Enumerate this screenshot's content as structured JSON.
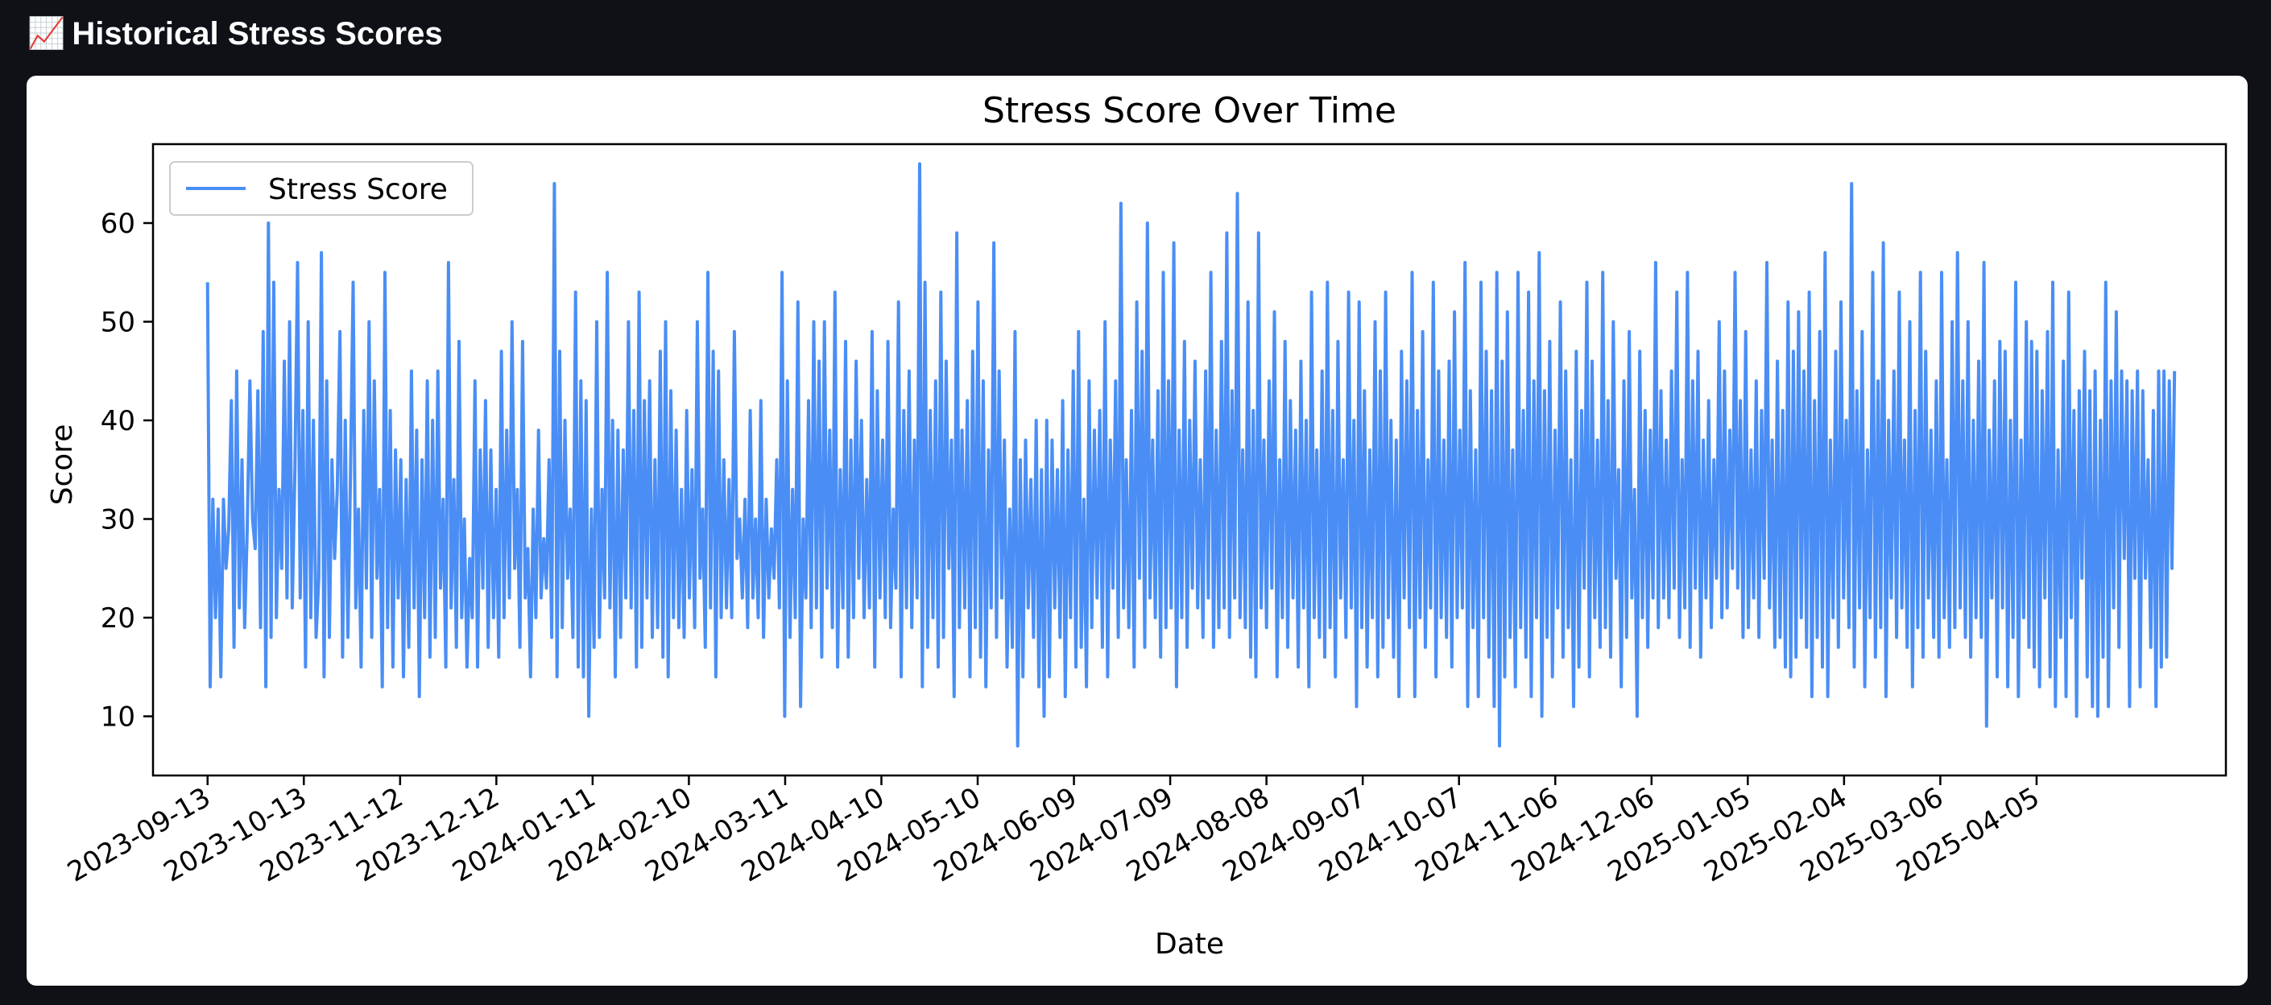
{
  "page": {
    "icon": "chart-increasing-icon",
    "icon_glyph": "📈",
    "title": "Historical Stress Scores"
  },
  "chart_data": {
    "type": "line",
    "title": "Stress Score Over Time",
    "xlabel": "Date",
    "ylabel": "Score",
    "x_start": "2023-09-13",
    "x_end": "2025-05-18",
    "xlim": [
      "2023-08-27",
      "2025-06-03"
    ],
    "ylim": [
      4,
      68
    ],
    "x_ticks": [
      "2023-09-13",
      "2023-10-13",
      "2023-11-12",
      "2023-12-12",
      "2024-01-11",
      "2024-02-10",
      "2024-03-11",
      "2024-04-10",
      "2024-05-10",
      "2024-06-09",
      "2024-07-09",
      "2024-08-08",
      "2024-09-07",
      "2024-10-07",
      "2024-11-06",
      "2024-12-06",
      "2025-01-05",
      "2025-02-04",
      "2025-03-06",
      "2025-04-05"
    ],
    "y_ticks": [
      10,
      20,
      30,
      40,
      50,
      60
    ],
    "grid": false,
    "legend_position": "top-left",
    "series": [
      {
        "name": "Stress Score",
        "color": "#4a8ef5",
        "values": [
          54,
          13,
          32,
          20,
          31,
          14,
          32,
          25,
          29,
          42,
          17,
          45,
          21,
          36,
          19,
          29,
          44,
          30,
          27,
          43,
          19,
          49,
          13,
          60,
          18,
          54,
          20,
          33,
          25,
          46,
          22,
          50,
          21,
          35,
          56,
          22,
          41,
          15,
          50,
          20,
          40,
          18,
          24,
          57,
          14,
          44,
          18,
          36,
          26,
          33,
          49,
          16,
          40,
          18,
          35,
          54,
          21,
          31,
          15,
          41,
          23,
          50,
          18,
          44,
          24,
          33,
          13,
          55,
          19,
          41,
          15,
          37,
          22,
          36,
          14,
          34,
          17,
          45,
          21,
          39,
          12,
          36,
          20,
          44,
          16,
          40,
          18,
          45,
          23,
          32,
          15,
          56,
          21,
          34,
          17,
          48,
          20,
          30,
          15,
          26,
          20,
          44,
          15,
          37,
          23,
          42,
          17,
          37,
          20,
          33,
          16,
          47,
          20,
          39,
          22,
          50,
          25,
          33,
          17,
          48,
          22,
          27,
          14,
          31,
          20,
          39,
          22,
          28,
          23,
          36,
          18,
          64,
          14,
          47,
          19,
          40,
          24,
          31,
          18,
          53,
          15,
          44,
          14,
          42,
          10,
          31,
          17,
          50,
          18,
          33,
          22,
          55,
          21,
          40,
          14,
          39,
          18,
          37,
          22,
          50,
          21,
          41,
          15,
          53,
          17,
          42,
          22,
          44,
          18,
          36,
          19,
          47,
          16,
          50,
          14,
          43,
          20,
          39,
          19,
          33,
          18,
          41,
          22,
          35,
          19,
          50,
          24,
          31,
          17,
          55,
          21,
          47,
          14,
          45,
          20,
          36,
          21,
          34,
          20,
          49,
          26,
          30,
          22,
          32,
          19,
          41,
          22,
          30,
          20,
          42,
          18,
          32,
          22,
          29,
          24,
          36,
          21,
          55,
          10,
          44,
          18,
          33,
          20,
          52,
          11,
          30,
          22,
          42,
          19,
          50,
          21,
          46,
          16,
          50,
          23,
          39,
          19,
          53,
          15,
          35,
          21,
          48,
          16,
          38,
          20,
          46,
          24,
          40,
          20,
          34,
          21,
          49,
          15,
          43,
          22,
          38,
          20,
          48,
          19,
          31,
          23,
          52,
          14,
          41,
          21,
          45,
          19,
          38,
          22,
          66,
          13,
          54,
          17,
          41,
          20,
          44,
          15,
          53,
          18,
          46,
          25,
          38,
          12,
          59,
          19,
          39,
          21,
          42,
          14,
          47,
          19,
          52,
          16,
          44,
          13,
          37,
          21,
          58,
          18,
          45,
          22,
          38,
          15,
          31,
          17,
          49,
          7,
          36,
          14,
          38,
          21,
          34,
          18,
          40,
          13,
          35,
          10,
          40,
          14,
          38,
          21,
          35,
          18,
          42,
          12,
          37,
          20,
          45,
          15,
          49,
          17,
          32,
          13,
          44,
          19,
          39,
          22,
          41,
          17,
          50,
          14,
          38,
          23,
          44,
          18,
          62,
          21,
          36,
          19,
          41,
          15,
          52,
          24,
          47,
          17,
          60,
          22,
          38,
          20,
          43,
          16,
          55,
          19,
          44,
          21,
          58,
          13,
          39,
          20,
          48,
          17,
          40,
          23,
          46,
          21,
          36,
          18,
          45,
          22,
          55,
          17,
          39,
          19,
          48,
          21,
          59,
          18,
          43,
          22,
          63,
          20,
          37,
          19,
          52,
          16,
          41,
          14,
          59,
          21,
          38,
          19,
          44,
          23,
          51,
          14,
          36,
          20,
          48,
          17,
          42,
          22,
          39,
          15,
          46,
          21,
          40,
          13,
          53,
          20,
          37,
          18,
          45,
          16,
          54,
          19,
          41,
          14,
          48,
          22,
          36,
          18,
          53,
          21,
          40,
          11,
          52,
          19,
          43,
          15,
          37,
          20,
          50,
          14,
          45,
          17,
          53,
          20,
          40,
          16,
          38,
          12,
          47,
          22,
          44,
          19,
          55,
          12,
          41,
          20,
          49,
          17,
          36,
          21,
          54,
          14,
          45,
          20,
          38,
          18,
          46,
          15,
          51,
          20,
          39,
          21,
          56,
          11,
          43,
          19,
          37,
          12,
          54,
          20,
          47,
          16,
          43,
          11,
          55,
          7,
          46,
          14,
          51,
          18,
          37,
          13,
          55,
          19,
          41,
          16,
          53,
          12,
          44,
          20,
          57,
          10,
          43,
          18,
          48,
          14,
          39,
          21,
          52,
          16,
          45,
          19,
          36,
          11,
          47,
          15,
          41,
          23,
          54,
          14,
          46,
          20,
          38,
          17,
          55,
          19,
          42,
          16,
          50,
          24,
          35,
          13,
          44,
          18,
          49,
          22,
          33,
          10,
          47,
          20,
          41,
          17,
          39,
          22,
          56,
          19,
          43,
          22,
          38,
          20,
          45,
          23,
          53,
          18,
          36,
          21,
          55,
          17,
          44,
          23,
          47,
          16,
          38,
          22,
          42,
          19,
          36,
          24,
          50,
          20,
          45,
          21,
          39,
          25,
          55,
          23,
          42,
          18,
          49,
          19,
          37,
          22,
          44,
          18,
          41,
          24,
          56,
          21,
          38,
          17,
          46,
          18,
          41,
          15,
          52,
          14,
          47,
          16,
          51,
          20,
          45,
          17,
          53,
          12,
          42,
          18,
          49,
          15,
          57,
          12,
          38,
          20,
          47,
          17,
          52,
          22,
          40,
          19,
          64,
          15,
          43,
          21,
          49,
          13,
          37,
          20,
          55,
          16,
          44,
          19,
          58,
          12,
          40,
          22,
          45,
          18,
          53,
          21,
          38,
          17,
          50,
          13,
          41,
          19,
          55,
          16,
          47,
          22,
          39,
          18,
          44,
          16,
          55,
          20,
          36,
          17,
          50,
          19,
          57,
          21,
          44,
          18,
          50,
          16,
          40,
          20,
          46,
          18,
          56,
          9,
          39,
          22,
          44,
          14,
          48,
          21,
          47,
          13,
          40,
          18,
          54,
          12,
          38,
          20,
          50,
          17,
          48,
          15,
          47,
          13,
          43,
          22,
          49,
          14,
          54,
          11,
          37,
          18,
          46,
          12,
          53,
          20,
          41,
          10,
          43,
          24,
          47,
          14,
          43,
          11,
          45,
          10,
          40,
          16,
          54,
          11,
          44,
          21,
          51,
          17,
          45,
          26,
          44,
          11,
          43,
          24,
          45,
          13,
          43,
          24,
          36,
          17,
          41,
          11,
          45,
          15,
          45,
          16,
          44,
          25,
          45
        ]
      }
    ]
  }
}
